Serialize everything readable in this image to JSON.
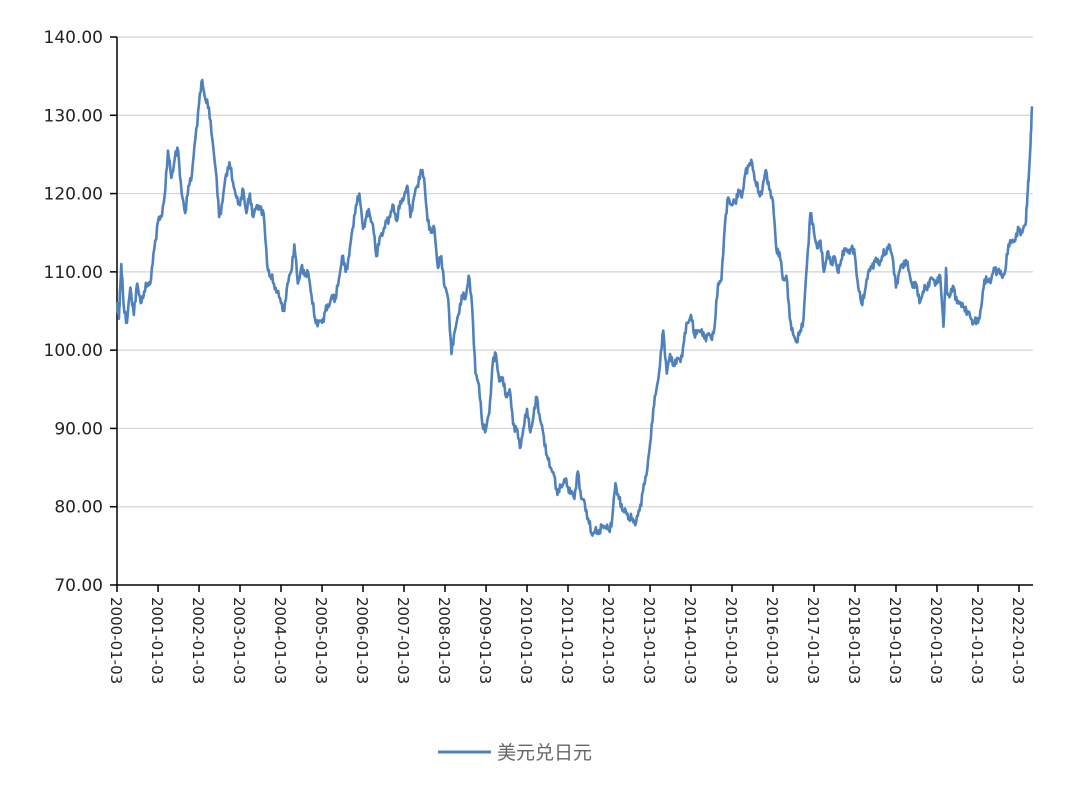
{
  "chart_data": {
    "type": "line",
    "title": "",
    "xlabel": "",
    "ylabel": "",
    "ylim": [
      70,
      140
    ],
    "yticks": [
      "70.00",
      "80.00",
      "90.00",
      "100.00",
      "110.00",
      "120.00",
      "130.00",
      "140.00"
    ],
    "xticks": [
      "2000-01-03",
      "2001-01-03",
      "2002-01-03",
      "2003-01-03",
      "2004-01-03",
      "2005-01-03",
      "2006-01-03",
      "2007-01-03",
      "2008-01-03",
      "2009-01-03",
      "2010-01-03",
      "2011-01-03",
      "2012-01-03",
      "2013-01-03",
      "2014-01-03",
      "2015-01-03",
      "2016-01-03",
      "2017-01-03",
      "2018-01-03",
      "2019-01-03",
      "2020-01-03",
      "2021-01-03",
      "2022-01-03"
    ],
    "xlim": [
      "2000-01-03",
      "2022-05-01"
    ],
    "grid": "horizontal",
    "legend_position": "bottom-center",
    "color": "#4f81bd",
    "series": [
      {
        "name": "美元兑日元",
        "points": [
          [
            "2000-01-03",
            106.0
          ],
          [
            "2000-01-20",
            104.0
          ],
          [
            "2000-02-01",
            108.0
          ],
          [
            "2000-02-10",
            111.0
          ],
          [
            "2000-03-01",
            106.0
          ],
          [
            "2000-04-01",
            103.5
          ],
          [
            "2000-05-01",
            108.0
          ],
          [
            "2000-06-01",
            104.5
          ],
          [
            "2000-07-01",
            108.5
          ],
          [
            "2000-08-01",
            106.0
          ],
          [
            "2000-09-01",
            107.5
          ],
          [
            "2000-10-01",
            108.5
          ],
          [
            "2000-11-01",
            109.0
          ],
          [
            "2000-12-01",
            113.0
          ],
          [
            "2001-01-03",
            116.5
          ],
          [
            "2001-02-01",
            117.0
          ],
          [
            "2001-03-01",
            119.5
          ],
          [
            "2001-04-01",
            125.5
          ],
          [
            "2001-05-01",
            122.0
          ],
          [
            "2001-06-01",
            124.5
          ],
          [
            "2001-07-01",
            125.5
          ],
          [
            "2001-08-01",
            120.0
          ],
          [
            "2001-09-01",
            117.5
          ],
          [
            "2001-10-01",
            121.0
          ],
          [
            "2001-11-01",
            122.5
          ],
          [
            "2001-12-01",
            127.0
          ],
          [
            "2002-01-03",
            131.5
          ],
          [
            "2002-02-01",
            134.5
          ],
          [
            "2002-03-01",
            132.0
          ],
          [
            "2002-04-01",
            131.0
          ],
          [
            "2002-05-01",
            127.0
          ],
          [
            "2002-06-01",
            123.0
          ],
          [
            "2002-07-01",
            117.0
          ],
          [
            "2002-08-01",
            119.0
          ],
          [
            "2002-09-01",
            122.5
          ],
          [
            "2002-10-01",
            124.0
          ],
          [
            "2002-11-01",
            121.5
          ],
          [
            "2002-12-01",
            119.5
          ],
          [
            "2003-01-03",
            118.5
          ],
          [
            "2003-02-01",
            120.5
          ],
          [
            "2003-03-01",
            117.5
          ],
          [
            "2003-04-01",
            120.0
          ],
          [
            "2003-05-01",
            117.0
          ],
          [
            "2003-06-01",
            118.5
          ],
          [
            "2003-07-01",
            118.0
          ],
          [
            "2003-08-01",
            117.5
          ],
          [
            "2003-09-01",
            111.0
          ],
          [
            "2003-10-01",
            109.5
          ],
          [
            "2003-11-01",
            108.5
          ],
          [
            "2003-12-01",
            107.5
          ],
          [
            "2004-01-03",
            106.0
          ],
          [
            "2004-02-01",
            105.0
          ],
          [
            "2004-03-01",
            108.5
          ],
          [
            "2004-04-01",
            110.0
          ],
          [
            "2004-05-01",
            113.5
          ],
          [
            "2004-06-01",
            108.5
          ],
          [
            "2004-07-01",
            110.5
          ],
          [
            "2004-08-01",
            109.5
          ],
          [
            "2004-09-01",
            110.0
          ],
          [
            "2004-10-01",
            107.0
          ],
          [
            "2004-11-01",
            104.0
          ],
          [
            "2004-12-01",
            103.5
          ],
          [
            "2005-01-03",
            103.5
          ],
          [
            "2005-02-01",
            105.0
          ],
          [
            "2005-03-01",
            105.5
          ],
          [
            "2005-04-01",
            107.0
          ],
          [
            "2005-05-01",
            106.5
          ],
          [
            "2005-06-01",
            109.0
          ],
          [
            "2005-07-01",
            112.0
          ],
          [
            "2005-08-01",
            110.0
          ],
          [
            "2005-09-01",
            112.0
          ],
          [
            "2005-10-01",
            115.5
          ],
          [
            "2005-11-01",
            118.5
          ],
          [
            "2005-12-01",
            120.0
          ],
          [
            "2006-01-03",
            115.5
          ],
          [
            "2006-02-01",
            117.0
          ],
          [
            "2006-03-01",
            117.5
          ],
          [
            "2006-04-01",
            116.0
          ],
          [
            "2006-05-01",
            112.0
          ],
          [
            "2006-06-01",
            114.5
          ],
          [
            "2006-07-01",
            115.0
          ],
          [
            "2006-08-01",
            116.5
          ],
          [
            "2006-09-01",
            117.0
          ],
          [
            "2006-10-01",
            118.5
          ],
          [
            "2006-11-01",
            116.5
          ],
          [
            "2006-12-01",
            119.0
          ],
          [
            "2007-01-03",
            119.5
          ],
          [
            "2007-02-01",
            121.0
          ],
          [
            "2007-03-01",
            117.0
          ],
          [
            "2007-04-01",
            119.5
          ],
          [
            "2007-05-01",
            121.0
          ],
          [
            "2007-06-01",
            123.0
          ],
          [
            "2007-07-01",
            122.0
          ],
          [
            "2007-08-01",
            116.5
          ],
          [
            "2007-09-01",
            115.0
          ],
          [
            "2007-10-01",
            115.5
          ],
          [
            "2007-11-01",
            110.5
          ],
          [
            "2007-12-01",
            112.0
          ],
          [
            "2008-01-03",
            108.0
          ],
          [
            "2008-02-01",
            106.5
          ],
          [
            "2008-03-01",
            99.5
          ],
          [
            "2008-04-01",
            102.5
          ],
          [
            "2008-05-01",
            104.5
          ],
          [
            "2008-06-01",
            107.0
          ],
          [
            "2008-07-01",
            106.5
          ],
          [
            "2008-08-01",
            109.5
          ],
          [
            "2008-09-01",
            105.5
          ],
          [
            "2008-10-01",
            97.0
          ],
          [
            "2008-11-01",
            95.5
          ],
          [
            "2008-12-01",
            90.5
          ],
          [
            "2009-01-03",
            90.0
          ],
          [
            "2009-02-01",
            92.0
          ],
          [
            "2009-03-01",
            98.0
          ],
          [
            "2009-04-01",
            99.5
          ],
          [
            "2009-05-01",
            96.0
          ],
          [
            "2009-06-01",
            96.5
          ],
          [
            "2009-07-01",
            94.0
          ],
          [
            "2009-08-01",
            95.0
          ],
          [
            "2009-09-01",
            90.5
          ],
          [
            "2009-10-01",
            90.0
          ],
          [
            "2009-11-01",
            87.5
          ],
          [
            "2009-12-01",
            90.0
          ],
          [
            "2010-01-03",
            92.5
          ],
          [
            "2010-02-01",
            89.5
          ],
          [
            "2010-03-01",
            91.5
          ],
          [
            "2010-04-01",
            94.0
          ],
          [
            "2010-05-01",
            91.0
          ],
          [
            "2010-06-01",
            89.0
          ],
          [
            "2010-07-01",
            86.5
          ],
          [
            "2010-08-01",
            85.0
          ],
          [
            "2010-09-01",
            84.0
          ],
          [
            "2010-10-01",
            81.5
          ],
          [
            "2010-11-01",
            82.5
          ],
          [
            "2010-12-01",
            83.5
          ],
          [
            "2011-01-03",
            82.5
          ],
          [
            "2011-02-01",
            82.0
          ],
          [
            "2011-03-01",
            81.0
          ],
          [
            "2011-04-01",
            84.5
          ],
          [
            "2011-05-01",
            81.0
          ],
          [
            "2011-06-01",
            80.5
          ],
          [
            "2011-07-01",
            78.5
          ],
          [
            "2011-08-01",
            76.5
          ],
          [
            "2011-09-01",
            77.0
          ],
          [
            "2011-10-01",
            76.5
          ],
          [
            "2011-11-01",
            77.5
          ],
          [
            "2011-12-01",
            77.5
          ],
          [
            "2012-01-03",
            77.0
          ],
          [
            "2012-02-01",
            78.5
          ],
          [
            "2012-03-01",
            83.0
          ],
          [
            "2012-04-01",
            81.0
          ],
          [
            "2012-05-01",
            79.5
          ],
          [
            "2012-06-01",
            79.5
          ],
          [
            "2012-07-01",
            78.5
          ],
          [
            "2012-08-01",
            78.5
          ],
          [
            "2012-09-01",
            78.0
          ],
          [
            "2012-10-01",
            79.5
          ],
          [
            "2012-11-01",
            82.0
          ],
          [
            "2012-12-01",
            84.0
          ],
          [
            "2013-01-03",
            88.0
          ],
          [
            "2013-02-01",
            92.5
          ],
          [
            "2013-03-01",
            95.0
          ],
          [
            "2013-04-01",
            98.0
          ],
          [
            "2013-05-01",
            102.5
          ],
          [
            "2013-06-01",
            97.0
          ],
          [
            "2013-07-01",
            99.5
          ],
          [
            "2013-08-01",
            98.0
          ],
          [
            "2013-09-01",
            99.0
          ],
          [
            "2013-10-01",
            98.5
          ],
          [
            "2013-11-01",
            101.0
          ],
          [
            "2013-12-01",
            103.5
          ],
          [
            "2014-01-03",
            104.5
          ],
          [
            "2014-02-01",
            102.0
          ],
          [
            "2014-03-01",
            102.5
          ],
          [
            "2014-04-01",
            102.5
          ],
          [
            "2014-05-01",
            101.5
          ],
          [
            "2014-06-01",
            102.0
          ],
          [
            "2014-07-01",
            101.5
          ],
          [
            "2014-08-01",
            103.0
          ],
          [
            "2014-09-01",
            108.5
          ],
          [
            "2014-10-01",
            109.0
          ],
          [
            "2014-11-01",
            116.0
          ],
          [
            "2014-12-01",
            119.5
          ],
          [
            "2015-01-03",
            118.5
          ],
          [
            "2015-02-01",
            119.0
          ],
          [
            "2015-03-01",
            120.5
          ],
          [
            "2015-04-01",
            119.5
          ],
          [
            "2015-05-01",
            122.5
          ],
          [
            "2015-06-01",
            123.5
          ],
          [
            "2015-07-01",
            124.0
          ],
          [
            "2015-08-01",
            121.5
          ],
          [
            "2015-09-01",
            120.0
          ],
          [
            "2015-10-01",
            120.5
          ],
          [
            "2015-11-01",
            123.0
          ],
          [
            "2015-12-01",
            120.5
          ],
          [
            "2016-01-03",
            119.0
          ],
          [
            "2016-02-01",
            113.0
          ],
          [
            "2016-03-01",
            112.5
          ],
          [
            "2016-04-01",
            109.0
          ],
          [
            "2016-05-01",
            109.5
          ],
          [
            "2016-06-01",
            104.0
          ],
          [
            "2016-07-01",
            102.0
          ],
          [
            "2016-08-01",
            101.0
          ],
          [
            "2016-09-01",
            102.5
          ],
          [
            "2016-10-01",
            104.0
          ],
          [
            "2016-11-01",
            111.0
          ],
          [
            "2016-12-01",
            117.5
          ],
          [
            "2017-01-03",
            115.0
          ],
          [
            "2017-02-01",
            113.0
          ],
          [
            "2017-03-01",
            114.0
          ],
          [
            "2017-04-01",
            110.0
          ],
          [
            "2017-05-01",
            112.5
          ],
          [
            "2017-06-01",
            111.0
          ],
          [
            "2017-07-01",
            112.0
          ],
          [
            "2017-08-01",
            110.0
          ],
          [
            "2017-09-01",
            111.5
          ],
          [
            "2017-10-01",
            113.0
          ],
          [
            "2017-11-01",
            112.5
          ],
          [
            "2017-12-01",
            113.0
          ],
          [
            "2018-01-03",
            112.0
          ],
          [
            "2018-02-01",
            108.0
          ],
          [
            "2018-03-01",
            106.0
          ],
          [
            "2018-04-01",
            107.5
          ],
          [
            "2018-05-01",
            110.0
          ],
          [
            "2018-06-01",
            110.5
          ],
          [
            "2018-07-01",
            111.5
          ],
          [
            "2018-08-01",
            111.0
          ],
          [
            "2018-09-01",
            112.0
          ],
          [
            "2018-10-01",
            112.5
          ],
          [
            "2018-11-01",
            113.5
          ],
          [
            "2018-12-01",
            112.0
          ],
          [
            "2019-01-03",
            108.0
          ],
          [
            "2019-02-01",
            110.0
          ],
          [
            "2019-03-01",
            111.0
          ],
          [
            "2019-04-01",
            111.5
          ],
          [
            "2019-05-01",
            110.0
          ],
          [
            "2019-06-01",
            108.0
          ],
          [
            "2019-07-01",
            108.5
          ],
          [
            "2019-08-01",
            106.0
          ],
          [
            "2019-09-01",
            107.5
          ],
          [
            "2019-10-01",
            108.0
          ],
          [
            "2019-11-01",
            109.0
          ],
          [
            "2019-12-01",
            109.0
          ],
          [
            "2020-01-03",
            108.5
          ],
          [
            "2020-02-01",
            109.5
          ],
          [
            "2020-03-01",
            103.0
          ],
          [
            "2020-03-24",
            110.5
          ],
          [
            "2020-04-01",
            107.5
          ],
          [
            "2020-05-01",
            107.0
          ],
          [
            "2020-06-01",
            108.0
          ],
          [
            "2020-07-01",
            106.0
          ],
          [
            "2020-08-01",
            106.0
          ],
          [
            "2020-09-01",
            105.5
          ],
          [
            "2020-10-01",
            105.0
          ],
          [
            "2020-11-01",
            104.0
          ],
          [
            "2020-12-01",
            103.5
          ],
          [
            "2021-01-03",
            103.5
          ],
          [
            "2021-02-01",
            105.5
          ],
          [
            "2021-03-01",
            109.0
          ],
          [
            "2021-04-01",
            109.0
          ],
          [
            "2021-05-01",
            109.0
          ],
          [
            "2021-06-01",
            110.5
          ],
          [
            "2021-07-01",
            110.0
          ],
          [
            "2021-08-01",
            109.5
          ],
          [
            "2021-09-01",
            110.0
          ],
          [
            "2021-10-01",
            113.5
          ],
          [
            "2021-11-01",
            114.0
          ],
          [
            "2021-12-01",
            114.0
          ],
          [
            "2022-01-03",
            115.5
          ],
          [
            "2022-02-01",
            115.0
          ],
          [
            "2022-03-01",
            116.0
          ],
          [
            "2022-03-20",
            120.0
          ],
          [
            "2022-04-01",
            122.5
          ],
          [
            "2022-04-15",
            126.0
          ],
          [
            "2022-04-28",
            131.0
          ]
        ]
      }
    ]
  }
}
